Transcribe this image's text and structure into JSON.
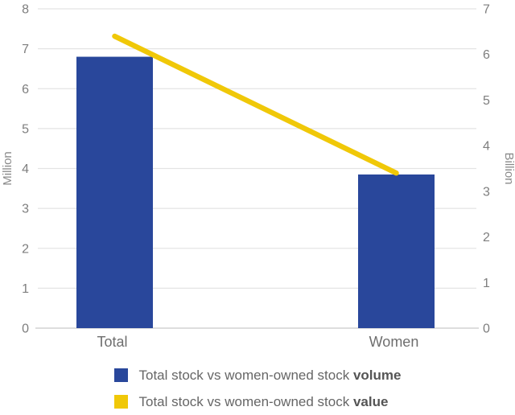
{
  "chart_data": {
    "type": "bar",
    "subtype": "combo: vertical bars (left axis) + straight connector line (right axis)",
    "categories": [
      "Total",
      "Women"
    ],
    "series": [
      {
        "name": "Total stock vs women-owned stock volume",
        "kind": "bar",
        "axis": "left",
        "unit": "Million",
        "values": [
          6.8,
          3.85
        ],
        "color": "#29479B"
      },
      {
        "name": "Total stock vs women-owned stock value",
        "kind": "line",
        "axis": "right",
        "unit": "Billion",
        "values": [
          6.4,
          3.4
        ],
        "color": "#F0C808"
      }
    ],
    "left_axis": {
      "title": "Million",
      "min": 0,
      "max": 8,
      "tick_labels": [
        "0",
        "1",
        "2",
        "3",
        "4",
        "5",
        "6",
        "7",
        "8"
      ]
    },
    "right_axis": {
      "title": "Billion",
      "min": 0,
      "max": 7,
      "tick_labels": [
        "0",
        "1",
        "2",
        "3",
        "4",
        "5",
        "6",
        "7"
      ]
    },
    "grid": true,
    "legend_position": "bottom"
  },
  "legend": {
    "items": [
      {
        "prefix": "Total stock vs women-owned stock ",
        "bold": "volume",
        "color": "#29479B"
      },
      {
        "prefix": "Total stock vs women-owned stock ",
        "bold": "value",
        "color": "#F0C808"
      }
    ]
  },
  "colors": {
    "bar": "#29479B",
    "line": "#F0C808",
    "gridline": "#E4E4E4",
    "axis_line": "#D2D2D2",
    "tick_text": "#7E7E7E",
    "axis_title_text": "#8A8A8A",
    "category_text": "#6E6E6E",
    "legend_text": "#666666",
    "background": "#FFFFFF"
  }
}
